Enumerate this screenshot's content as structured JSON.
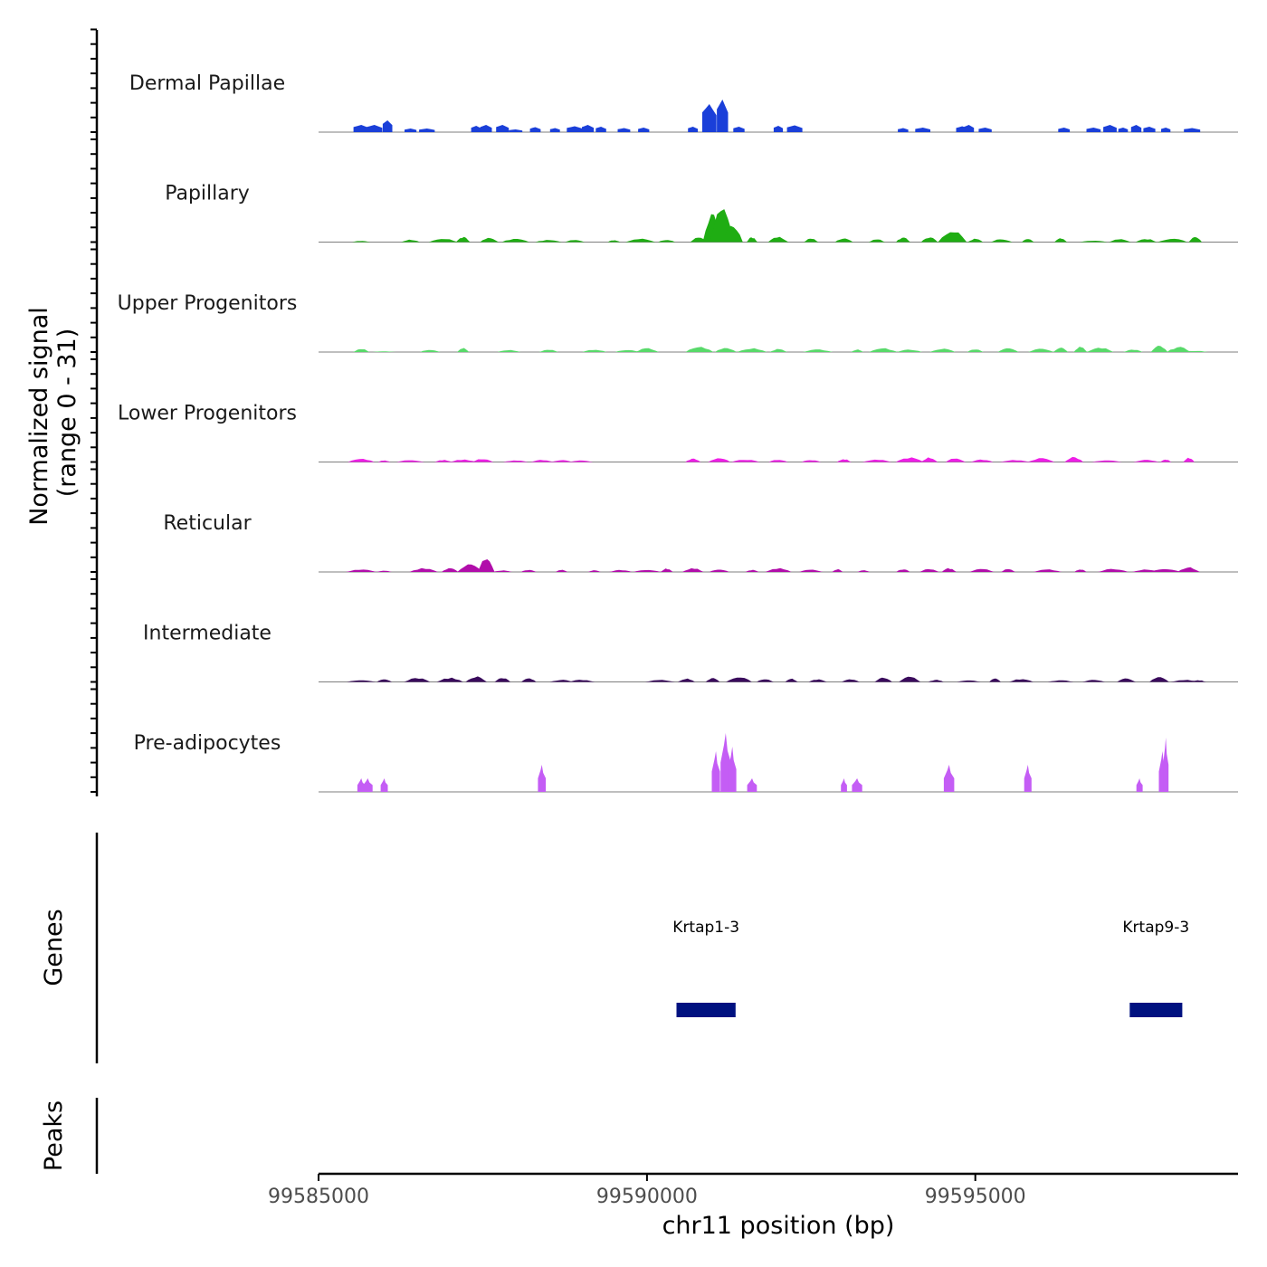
{
  "chart_data": {
    "type": "area",
    "subtype": "genome-coverage-tracks",
    "chromosome": "chr11",
    "xlim": [
      99585000,
      99599000
    ],
    "xticks": [
      99585000,
      99590000,
      99595000
    ],
    "xtick_labels": [
      "99585000",
      "99590000",
      "99595000"
    ],
    "xlabel": "chr11 position (bp)",
    "ylabel_line1": "Normalized signal",
    "ylabel_line2": "(range 0 - 31)",
    "ylim": [
      0,
      31
    ],
    "tracks": [
      {
        "name": "Dermal Papillae",
        "color": "#1a3fd9",
        "style": "blocky",
        "peaks": [
          [
            99585650,
            1.6
          ],
          [
            99585850,
            1.6
          ],
          [
            99586050,
            2.6
          ],
          [
            99586250,
            0
          ],
          [
            99586400,
            0.8
          ],
          [
            99586650,
            0.8
          ],
          [
            99587400,
            1.4
          ],
          [
            99587550,
            1.6
          ],
          [
            99587800,
            1.6
          ],
          [
            99588000,
            0.6
          ],
          [
            99588300,
            1.1
          ],
          [
            99588600,
            0.9
          ],
          [
            99588900,
            1.3
          ],
          [
            99589100,
            1.6
          ],
          [
            99589300,
            1.2
          ],
          [
            99589650,
            0.9
          ],
          [
            99589950,
            1.0
          ],
          [
            99590200,
            0.0
          ],
          [
            99590700,
            1.2
          ],
          [
            99590950,
            6.2
          ],
          [
            99591150,
            7.2
          ],
          [
            99591400,
            1.2
          ],
          [
            99592000,
            1.4
          ],
          [
            99592250,
            1.5
          ],
          [
            99593900,
            0.9
          ],
          [
            99594200,
            1.0
          ],
          [
            99594800,
            1.3
          ],
          [
            99594900,
            1.6
          ],
          [
            99595150,
            1.0
          ],
          [
            99596350,
            1.0
          ],
          [
            99596800,
            1.0
          ],
          [
            99597050,
            1.6
          ],
          [
            99597250,
            1.0
          ],
          [
            99597450,
            1.6
          ],
          [
            99597650,
            1.2
          ],
          [
            99597900,
            1.0
          ],
          [
            99598300,
            0.9
          ]
        ]
      },
      {
        "name": "Papillary",
        "color": "#1fad13",
        "style": "smooth",
        "peaks": [
          [
            99585650,
            0.3
          ],
          [
            99586400,
            0.6
          ],
          [
            99586900,
            0.8
          ],
          [
            99587200,
            1.2
          ],
          [
            99587600,
            1.0
          ],
          [
            99588000,
            0.8
          ],
          [
            99588500,
            0.5
          ],
          [
            99588900,
            0.6
          ],
          [
            99589500,
            0.5
          ],
          [
            99589900,
            0.8
          ],
          [
            99590300,
            0.6
          ],
          [
            99590800,
            1.2
          ],
          [
            99591000,
            6.5
          ],
          [
            99591150,
            8.0
          ],
          [
            99591300,
            4.0
          ],
          [
            99591600,
            1.2
          ],
          [
            99592000,
            1.2
          ],
          [
            99592500,
            0.9
          ],
          [
            99593000,
            1.0
          ],
          [
            99593500,
            0.7
          ],
          [
            99593900,
            1.1
          ],
          [
            99594300,
            1.2
          ],
          [
            99594650,
            3.0
          ],
          [
            99595000,
            0.8
          ],
          [
            99595400,
            0.7
          ],
          [
            99595800,
            0.8
          ],
          [
            99596300,
            0.9
          ],
          [
            99596800,
            0.4
          ],
          [
            99597200,
            0.8
          ],
          [
            99597600,
            0.8
          ],
          [
            99598000,
            0.9
          ],
          [
            99598350,
            1.2
          ]
        ]
      },
      {
        "name": "Upper Progenitors",
        "color": "#58d96a",
        "style": "smooth",
        "peaks": [
          [
            99585650,
            0.8
          ],
          [
            99586000,
            0.2
          ],
          [
            99586700,
            0.6
          ],
          [
            99587200,
            1.0
          ],
          [
            99587900,
            0.5
          ],
          [
            99588500,
            0.6
          ],
          [
            99589200,
            0.6
          ],
          [
            99589700,
            0.5
          ],
          [
            99590000,
            0.9
          ],
          [
            99590800,
            1.3
          ],
          [
            99591200,
            1.1
          ],
          [
            99591600,
            0.9
          ],
          [
            99592000,
            0.7
          ],
          [
            99592600,
            0.6
          ],
          [
            99593200,
            0.6
          ],
          [
            99593600,
            0.9
          ],
          [
            99594000,
            0.6
          ],
          [
            99594500,
            0.8
          ],
          [
            99595000,
            0.7
          ],
          [
            99595500,
            0.9
          ],
          [
            99596000,
            0.9
          ],
          [
            99596300,
            1.2
          ],
          [
            99596600,
            1.4
          ],
          [
            99596900,
            1.1
          ],
          [
            99597400,
            0.6
          ],
          [
            99597800,
            1.5
          ],
          [
            99598100,
            1.2
          ],
          [
            99598350,
            0.3
          ]
        ]
      },
      {
        "name": "Lower Progenitors",
        "color": "#ee1ee6",
        "style": "smooth",
        "peaks": [
          [
            99585650,
            0.8
          ],
          [
            99586000,
            0.4
          ],
          [
            99586400,
            0.5
          ],
          [
            99586900,
            0.5
          ],
          [
            99587200,
            0.6
          ],
          [
            99587500,
            0.8
          ],
          [
            99588000,
            0.4
          ],
          [
            99588400,
            0.5
          ],
          [
            99588700,
            0.5
          ],
          [
            99589000,
            0.4
          ],
          [
            99590700,
            0.8
          ],
          [
            99591100,
            1.0
          ],
          [
            99591500,
            0.6
          ],
          [
            99592000,
            0.6
          ],
          [
            99592500,
            0.5
          ],
          [
            99593000,
            0.7
          ],
          [
            99593500,
            0.6
          ],
          [
            99594000,
            1.1
          ],
          [
            99594300,
            1.1
          ],
          [
            99594700,
            0.9
          ],
          [
            99595100,
            0.6
          ],
          [
            99595600,
            0.5
          ],
          [
            99596000,
            0.9
          ],
          [
            99596500,
            1.2
          ],
          [
            99597000,
            0.4
          ],
          [
            99597600,
            0.5
          ],
          [
            99597900,
            0.6
          ],
          [
            99598250,
            1.0
          ]
        ]
      },
      {
        "name": "Reticular",
        "color": "#b10eaa",
        "style": "smooth",
        "peaks": [
          [
            99585650,
            0.6
          ],
          [
            99586000,
            0.3
          ],
          [
            99586600,
            0.9
          ],
          [
            99587000,
            0.9
          ],
          [
            99587300,
            2.0
          ],
          [
            99587550,
            3.1
          ],
          [
            99587800,
            0.4
          ],
          [
            99588200,
            0.5
          ],
          [
            99588700,
            0.5
          ],
          [
            99589200,
            0.4
          ],
          [
            99589600,
            0.5
          ],
          [
            99590000,
            0.5
          ],
          [
            99590300,
            0.8
          ],
          [
            99590700,
            0.9
          ],
          [
            99591100,
            0.7
          ],
          [
            99591600,
            0.5
          ],
          [
            99592000,
            0.9
          ],
          [
            99592500,
            0.6
          ],
          [
            99592900,
            0.7
          ],
          [
            99593300,
            0.4
          ],
          [
            99593900,
            0.7
          ],
          [
            99594300,
            0.7
          ],
          [
            99594600,
            0.9
          ],
          [
            99595100,
            0.7
          ],
          [
            99595500,
            0.7
          ],
          [
            99596100,
            0.6
          ],
          [
            99596600,
            0.7
          ],
          [
            99597100,
            0.8
          ],
          [
            99597600,
            0.6
          ],
          [
            99597900,
            0.8
          ],
          [
            99598250,
            1.2
          ]
        ]
      },
      {
        "name": "Intermediate",
        "color": "#3a0b5c",
        "style": "smooth",
        "peaks": [
          [
            99585650,
            0.5
          ],
          [
            99586000,
            0.6
          ],
          [
            99586500,
            1.0
          ],
          [
            99587000,
            1.0
          ],
          [
            99587400,
            1.3
          ],
          [
            99587800,
            1.1
          ],
          [
            99588200,
            0.9
          ],
          [
            99588700,
            0.5
          ],
          [
            99589000,
            0.5
          ],
          [
            99590200,
            0.5
          ],
          [
            99590600,
            0.8
          ],
          [
            99591000,
            1.0
          ],
          [
            99591400,
            1.2
          ],
          [
            99591800,
            0.7
          ],
          [
            99592200,
            0.8
          ],
          [
            99592600,
            0.6
          ],
          [
            99593100,
            0.7
          ],
          [
            99593600,
            1.0
          ],
          [
            99594000,
            1.4
          ],
          [
            99594400,
            0.5
          ],
          [
            99594900,
            0.4
          ],
          [
            99595300,
            1.0
          ],
          [
            99595700,
            0.7
          ],
          [
            99596300,
            0.4
          ],
          [
            99596800,
            0.5
          ],
          [
            99597300,
            0.8
          ],
          [
            99597800,
            1.3
          ],
          [
            99598200,
            0.5
          ],
          [
            99598400,
            0.4
          ]
        ]
      },
      {
        "name": "Pre-adipocytes",
        "color": "#c45df5",
        "style": "spiky",
        "peaks": [
          [
            99585650,
            3.0
          ],
          [
            99585750,
            3.0
          ],
          [
            99586000,
            3.0
          ],
          [
            99588400,
            6.0
          ],
          [
            99591050,
            9.0
          ],
          [
            99591200,
            13.0
          ],
          [
            99591300,
            10.0
          ],
          [
            99591600,
            3.0
          ],
          [
            99593000,
            3.0
          ],
          [
            99593200,
            3.0
          ],
          [
            99594600,
            6.0
          ],
          [
            99595800,
            6.0
          ],
          [
            99597500,
            3.0
          ],
          [
            99597850,
            9.0
          ],
          [
            99597900,
            12.0
          ]
        ]
      }
    ],
    "gene_track": {
      "label": "Genes",
      "color": "#001180",
      "genes": [
        {
          "name": "Krtap1-3",
          "start": 99590450,
          "end": 99591350
        },
        {
          "name": "Krtap9-3",
          "start": 99597350,
          "end": 99598150
        }
      ]
    },
    "peak_track": {
      "label": "Peaks",
      "peaks": []
    }
  }
}
